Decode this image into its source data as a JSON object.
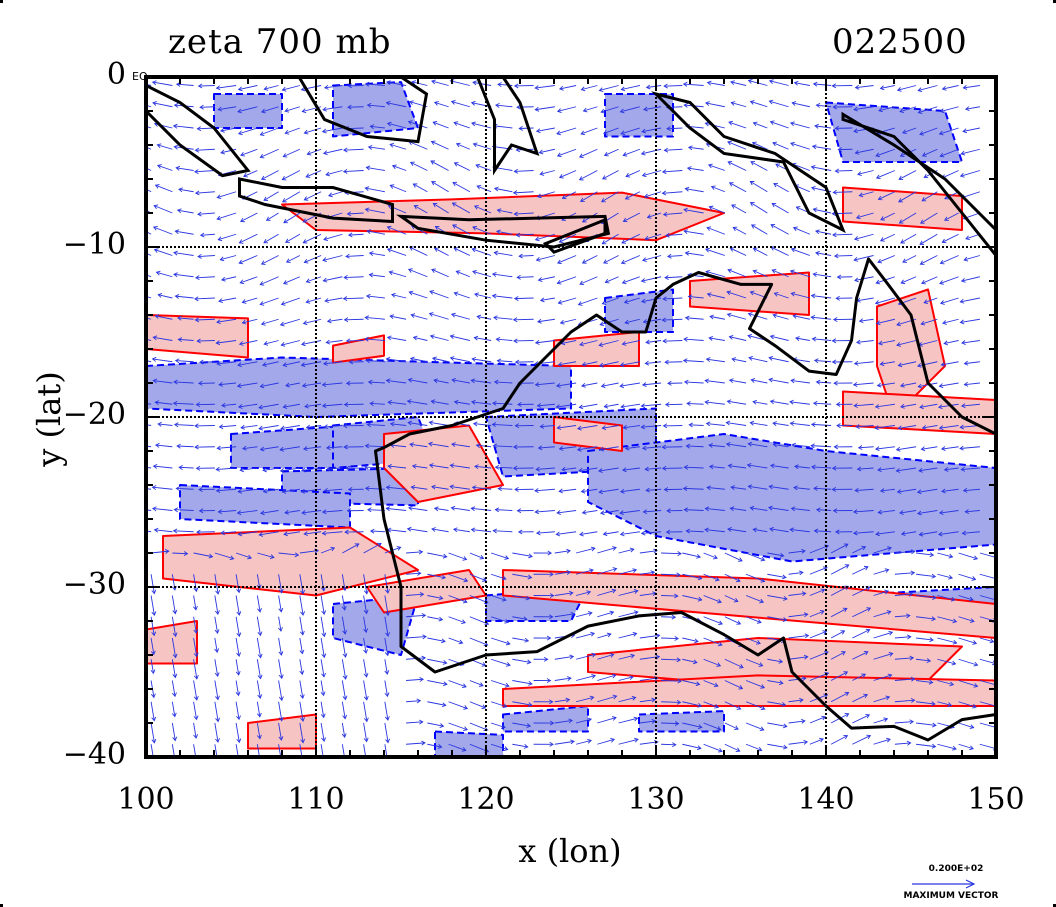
{
  "title": {
    "field": "zeta 700 mb",
    "timestamp": "022500"
  },
  "axes": {
    "xlabel": "x (lon)",
    "ylabel": "y (lat)",
    "xticks": [
      "100",
      "110",
      "120",
      "130",
      "140",
      "150"
    ],
    "yticks": [
      "0",
      "−10",
      "−20",
      "−30",
      "−40"
    ],
    "equator_label": "EQ",
    "xlim": [
      100,
      150
    ],
    "ylim": [
      -40,
      0
    ]
  },
  "vector_key": {
    "value": "0.200E+02",
    "caption": "MAXIMUM VECTOR"
  },
  "colors": {
    "positive_contour": "#ff0000",
    "positive_fill": "#f7c4c4",
    "negative_contour": "#0000ff",
    "negative_fill": "#a3a8eb",
    "coastline": "#000000",
    "vectors": "#2a36e0"
  },
  "map": {
    "region": "Australia and Maritime Continent",
    "grid": "dotted at 10 degree intervals"
  }
}
